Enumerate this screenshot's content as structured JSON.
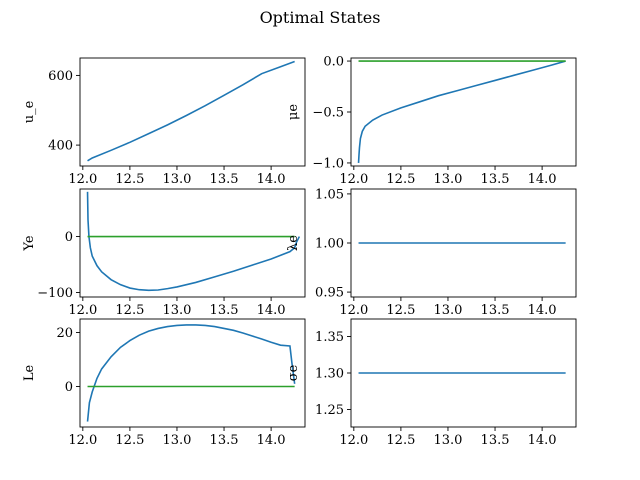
{
  "figure": {
    "title": "Optimal States"
  },
  "colors": {
    "series_blue": "#1f77b4",
    "series_green": "#2ca02c"
  },
  "chart_data": [
    {
      "type": "line",
      "ylabel": "u_e",
      "xlim": [
        11.97,
        14.36
      ],
      "ylim": [
        340,
        650
      ],
      "xticks": [
        12.0,
        12.5,
        13.0,
        13.5,
        14.0
      ],
      "xtick_labels": [
        "12.0",
        "12.5",
        "13.0",
        "13.5",
        "14.0"
      ],
      "yticks": [
        400,
        600
      ],
      "ytick_labels": [
        "400",
        "600"
      ],
      "series": [
        {
          "color": "#1f77b4",
          "x": [
            12.05,
            12.1,
            12.3,
            12.5,
            12.7,
            12.9,
            13.1,
            13.3,
            13.5,
            13.7,
            13.9,
            14.1,
            14.25
          ],
          "y": [
            355,
            363,
            385,
            408,
            433,
            458,
            485,
            513,
            543,
            573,
            605,
            625,
            640
          ]
        }
      ]
    },
    {
      "type": "line",
      "ylabel": "μe",
      "xlim": [
        11.97,
        14.36
      ],
      "ylim": [
        -1.03,
        0.03
      ],
      "xticks": [
        12.0,
        12.5,
        13.0,
        13.5,
        14.0
      ],
      "xtick_labels": [
        "12.0",
        "12.5",
        "13.0",
        "13.5",
        "14.0"
      ],
      "yticks": [
        -1.0,
        -0.5,
        0.0
      ],
      "ytick_labels": [
        "−1.0",
        "−0.5",
        "0.0"
      ],
      "series": [
        {
          "color": "#1f77b4",
          "x": [
            12.05,
            12.055,
            12.06,
            12.07,
            12.09,
            12.12,
            12.2,
            12.3,
            12.5,
            12.7,
            12.9,
            13.1,
            13.3,
            13.5,
            13.7,
            13.9,
            14.1,
            14.25
          ],
          "y": [
            -1.0,
            -0.92,
            -0.85,
            -0.76,
            -0.69,
            -0.64,
            -0.58,
            -0.53,
            -0.46,
            -0.4,
            -0.34,
            -0.29,
            -0.24,
            -0.19,
            -0.14,
            -0.09,
            -0.04,
            0.0
          ]
        },
        {
          "color": "#2ca02c",
          "x": [
            12.05,
            14.25
          ],
          "y": [
            0.0,
            0.0
          ]
        }
      ]
    },
    {
      "type": "line",
      "ylabel": "Ye",
      "xlim": [
        11.97,
        14.36
      ],
      "ylim": [
        -108,
        85
      ],
      "xticks": [
        12.0,
        12.5,
        13.0,
        13.5,
        14.0
      ],
      "xtick_labels": [
        "12.0",
        "12.5",
        "13.0",
        "13.5",
        "14.0"
      ],
      "yticks": [
        -100,
        0
      ],
      "ytick_labels": [
        "−100",
        "0"
      ],
      "series": [
        {
          "color": "#1f77b4",
          "x": [
            12.05,
            12.055,
            12.065,
            12.08,
            12.1,
            12.15,
            12.2,
            12.3,
            12.4,
            12.5,
            12.6,
            12.7,
            12.8,
            12.9,
            13.0,
            13.2,
            13.4,
            13.6,
            13.8,
            14.0,
            14.2,
            14.25,
            14.27,
            14.3
          ],
          "y": [
            80,
            30,
            0,
            -20,
            -35,
            -52,
            -63,
            -77,
            -86,
            -92,
            -95,
            -96,
            -95.5,
            -93,
            -90,
            -82,
            -72,
            -62,
            -51,
            -40,
            -27,
            -20,
            -10,
            0
          ]
        },
        {
          "color": "#2ca02c",
          "x": [
            12.05,
            14.25
          ],
          "y": [
            0,
            0
          ]
        }
      ]
    },
    {
      "type": "line",
      "ylabel": "λe",
      "xlim": [
        11.97,
        14.36
      ],
      "ylim": [
        0.945,
        1.055
      ],
      "xticks": [
        12.0,
        12.5,
        13.0,
        13.5,
        14.0
      ],
      "xtick_labels": [
        "12.0",
        "12.5",
        "13.0",
        "13.5",
        "14.0"
      ],
      "yticks": [
        0.95,
        1.0,
        1.05
      ],
      "ytick_labels": [
        "0.95",
        "1.00",
        "1.05"
      ],
      "series": [
        {
          "color": "#1f77b4",
          "x": [
            12.05,
            14.25
          ],
          "y": [
            1.0,
            1.0
          ]
        }
      ]
    },
    {
      "type": "line",
      "ylabel": "Le",
      "xlim": [
        11.97,
        14.36
      ],
      "ylim": [
        -15,
        25
      ],
      "xticks": [
        12.0,
        12.5,
        13.0,
        13.5,
        14.0
      ],
      "xtick_labels": [
        "12.0",
        "12.5",
        "13.0",
        "13.5",
        "14.0"
      ],
      "yticks": [
        0,
        20
      ],
      "ytick_labels": [
        "0",
        "20"
      ],
      "series": [
        {
          "color": "#1f77b4",
          "x": [
            12.05,
            12.07,
            12.1,
            12.15,
            12.2,
            12.3,
            12.4,
            12.5,
            12.6,
            12.7,
            12.8,
            12.9,
            13.0,
            13.1,
            13.2,
            13.3,
            13.4,
            13.5,
            13.6,
            13.7,
            13.8,
            13.9,
            14.0,
            14.1,
            14.2,
            14.22,
            14.25
          ],
          "y": [
            -13,
            -6,
            -2,
            3,
            6.5,
            11,
            14.5,
            17,
            19,
            20.5,
            21.5,
            22.2,
            22.6,
            22.8,
            22.8,
            22.6,
            22.2,
            21.5,
            20.8,
            19.8,
            18.7,
            17.6,
            16.4,
            15.3,
            15,
            9,
            1
          ]
        },
        {
          "color": "#2ca02c",
          "x": [
            12.05,
            14.25
          ],
          "y": [
            0,
            0
          ]
        }
      ]
    },
    {
      "type": "line",
      "ylabel": "σe",
      "xlim": [
        11.97,
        14.36
      ],
      "ylim": [
        1.226,
        1.374
      ],
      "xticks": [
        12.0,
        12.5,
        13.0,
        13.5,
        14.0
      ],
      "xtick_labels": [
        "12.0",
        "12.5",
        "13.0",
        "13.5",
        "14.0"
      ],
      "yticks": [
        1.25,
        1.3,
        1.35
      ],
      "ytick_labels": [
        "1.25",
        "1.30",
        "1.35"
      ],
      "series": [
        {
          "color": "#1f77b4",
          "x": [
            12.05,
            14.25
          ],
          "y": [
            1.3,
            1.3
          ]
        }
      ]
    }
  ]
}
